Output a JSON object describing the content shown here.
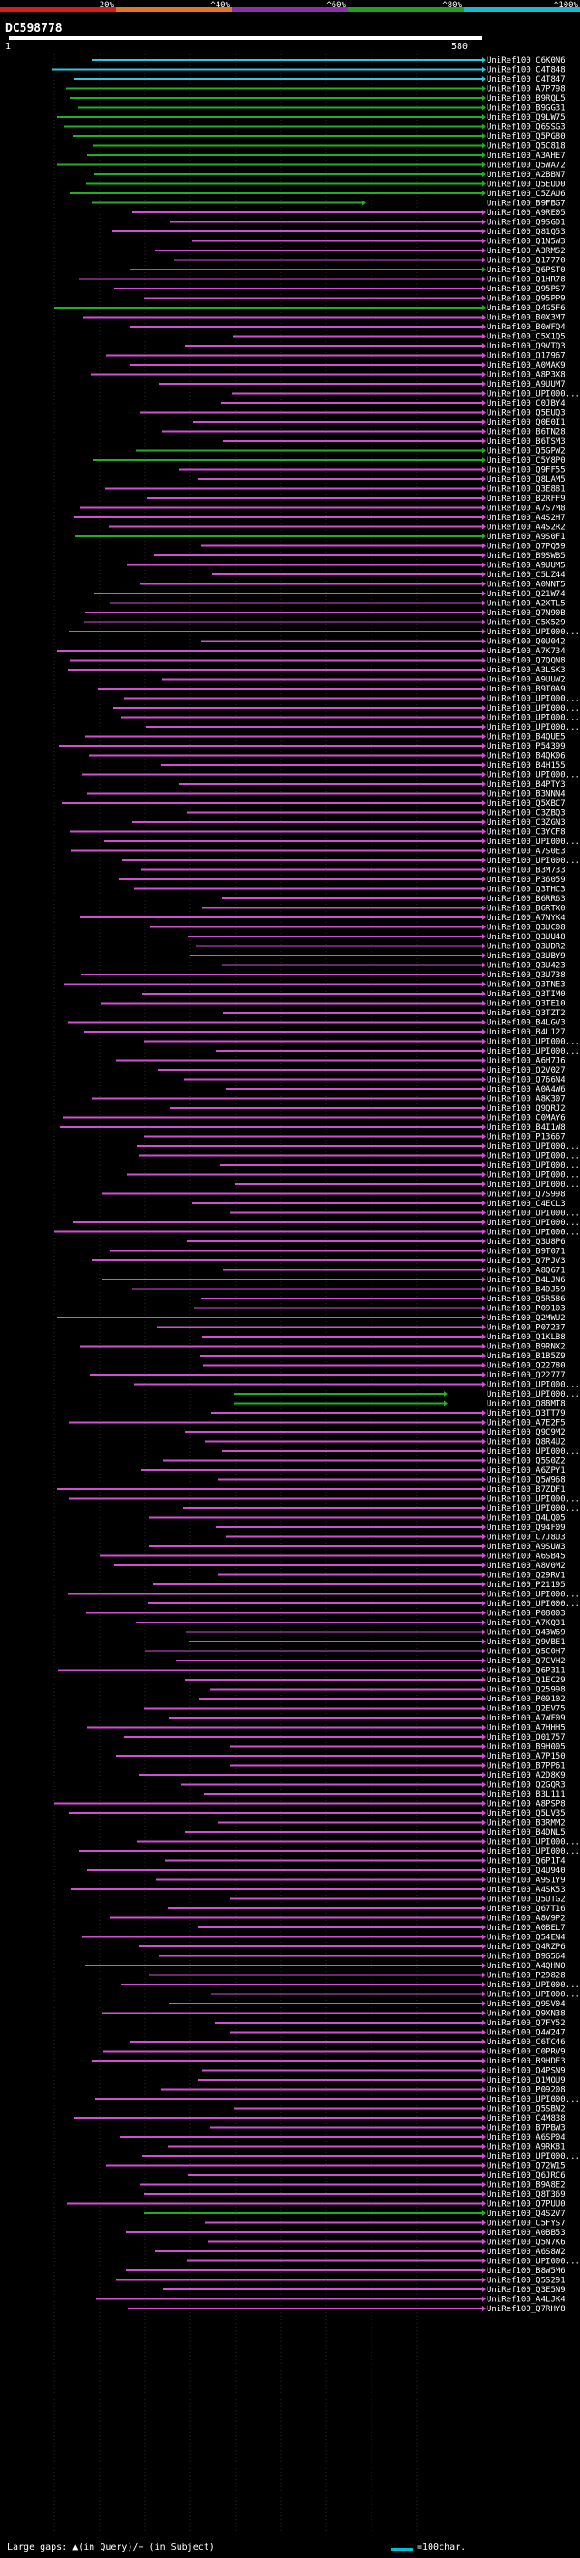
{
  "legend": {
    "ticks": [
      "20%",
      "^40%",
      "^60%",
      "^80%",
      "^100%"
    ],
    "colors": [
      "#d81b1b",
      "#e07820",
      "#8e2fae",
      "#20a020",
      "#1ab8d0"
    ]
  },
  "query": {
    "title": "DC598778",
    "start_label": "1",
    "end_label": "580"
  },
  "colors": {
    "magenta": "#d24fd2",
    "green": "#22b022",
    "cyan": "#2ec8e0",
    "gridline": "#555555"
  },
  "hits": [
    "UniRef100_C6K0N6",
    "UniRef100_C4T848",
    "UniRef100_C4T847",
    "UniRef100_A7P798",
    "UniRef100_B9RQL5",
    "UniRef100_B9GG31",
    "UniRef100_Q9LW75",
    "UniRef100_Q6SSG3",
    "UniRef100_Q5PG80",
    "UniRef100_Q5C818",
    "UniRef100_A3AHE7",
    "UniRef100_Q5WA72",
    "UniRef100_A2BBN7",
    "UniRef100_Q5EUD0",
    "UniRef100_C5ZAU6",
    "UniRef100_B9FBG7",
    "UniRef100_A9RE05",
    "UniRef100_Q9SGD1",
    "UniRef100_Q81Q53",
    "UniRef100_Q1N5W3",
    "UniRef100_A3RMS2",
    "UniRef100_Q17770",
    "UniRef100_Q6PST0",
    "UniRef100_Q1HR78",
    "UniRef100_Q95PS7",
    "UniRef100_Q95PP9",
    "UniRef100_Q4G5F6",
    "UniRef100_B0X3M7",
    "UniRef100_B0WFQ4",
    "UniRef100_C5X1Q5",
    "UniRef100_Q9VTQ3",
    "UniRef100_Q17967",
    "UniRef100_A0MAK9",
    "UniRef100_A8P3X8",
    "UniRef100_A9UUM7",
    "UniRef100_UPI000...",
    "UniRef100_C0JBY4",
    "UniRef100_Q5EUQ3",
    "UniRef100_Q0E0I1",
    "UniRef100_B6TN28",
    "UniRef100_B6TSM3",
    "UniRef100_Q5GPW2",
    "UniRef100_C5Y8P0",
    "UniRef100_Q9FF55",
    "UniRef100_Q8LAM5",
    "UniRef100_Q3E881",
    "UniRef100_B2RFF9",
    "UniRef100_A7S7M8",
    "UniRef100_A4S2H7",
    "UniRef100_A4S2R2",
    "UniRef100_A9S0F1",
    "UniRef100_Q7PQ59",
    "UniRef100_B9SWB5",
    "UniRef100_A9UUM5",
    "UniRef100_C5LZ44",
    "UniRef100_A0NNT5",
    "UniRef100_Q21W74",
    "UniRef100_A2XTL5",
    "UniRef100_Q7N90B",
    "UniRef100_C5X529",
    "UniRef100_UPI000...",
    "UniRef100_Q0U042",
    "UniRef100_A7K734",
    "UniRef100_Q7QQN8",
    "UniRef100_A3LSK3",
    "UniRef100_A9UUW2",
    "UniRef100_B9T0A9",
    "UniRef100_UPI000...",
    "UniRef100_UPI000...",
    "UniRef100_UPI000...",
    "UniRef100_UPI000...",
    "UniRef100_B4QUE5",
    "UniRef100_P54399",
    "UniRef100_B4QK06",
    "UniRef100_B4H155",
    "UniRef100_UPI000...",
    "UniRef100_B4PTY3",
    "UniRef100_B3NNN4",
    "UniRef100_Q5XBC7",
    "UniRef100_C3ZBQ3",
    "UniRef100_C3ZGN3",
    "UniRef100_C3YCF8",
    "UniRef100_UPI000...",
    "UniRef100_A7S0E3",
    "UniRef100_UPI000...",
    "UniRef100_B3M733",
    "UniRef100_P36059",
    "UniRef100_Q3THC3",
    "UniRef100_B6RR63",
    "UniRef100_B6RTX0",
    "UniRef100_A7NYK4",
    "UniRef100_Q3UC08",
    "UniRef100_Q3UU48",
    "UniRef100_Q3UDR2",
    "UniRef100_Q3UBY9",
    "UniRef100_Q3U423",
    "UniRef100_Q3U738",
    "UniRef100_Q3TNE3",
    "UniRef100_Q3TIM0",
    "UniRef100_Q3TE10",
    "UniRef100_Q3TZT2",
    "UniRef100_B4LGV3",
    "UniRef100_B4L127",
    "UniRef100_UPI000...",
    "UniRef100_UPI000...",
    "UniRef100_A6H7J6",
    "UniRef100_Q2V027",
    "UniRef100_Q766N4",
    "UniRef100_A0A4W6",
    "UniRef100_A8K307",
    "UniRef100_Q9QRJ2",
    "UniRef100_C0MAY6",
    "UniRef100_B4I1W8",
    "UniRef100_P13667",
    "UniRef100_UPI000...",
    "UniRef100_UPI000...",
    "UniRef100_UPI000...",
    "UniRef100_UPI000...",
    "UniRef100_UPI000...",
    "UniRef100_Q7S998",
    "UniRef100_C4ECL3",
    "UniRef100_UPI000...",
    "UniRef100_UPI000...",
    "UniRef100_UPI000...",
    "UniRef100_Q3U8P6",
    "UniRef100_B9T071",
    "UniRef100_Q7PJV3",
    "UniRef100_A8Q671",
    "UniRef100_B4LJN6",
    "UniRef100_B4DJ59",
    "UniRef100_Q5R586",
    "UniRef100_P09103",
    "UniRef100_Q2MWU2",
    "UniRef100_P07237",
    "UniRef100_Q1KLB8",
    "UniRef100_B9RNX2",
    "UniRef100_B1B5Z9",
    "UniRef100_Q22780",
    "UniRef100_Q22777",
    "UniRef100_UPI000...",
    "UniRef100_UPI000...",
    "UniRef100_Q8BMT8",
    "UniRef100_Q3TT79",
    "UniRef100_A7E2F5",
    "UniRef100_Q9C9M2",
    "UniRef100_Q8R4U2",
    "UniRef100_UPI000...",
    "UniRef100_Q5S0Z2",
    "UniRef100_A6ZPY1",
    "UniRef100_Q5W968",
    "UniRef100_B7ZDF1",
    "UniRef100_UPI000...",
    "UniRef100_UPI000...",
    "UniRef100_Q4LQ05",
    "UniRef100_Q94F09",
    "UniRef100_C7J8U3",
    "UniRef100_A9SUW3",
    "UniRef100_A6SB45",
    "UniRef100_A8V0M2",
    "UniRef100_Q29RV1",
    "UniRef100_P21195",
    "UniRef100_UPI000...",
    "UniRef100_UPI000...",
    "UniRef100_P08003",
    "UniRef100_A7KQ31",
    "UniRef100_Q43W69",
    "UniRef100_Q9VBE1",
    "UniRef100_Q5C0H7",
    "UniRef100_Q7CVH2",
    "UniRef100_Q6P311",
    "UniRef100_Q1EC29",
    "UniRef100_Q25998",
    "UniRef100_P09102",
    "UniRef100_Q2EV75",
    "UniRef100_A7WF09",
    "UniRef100_A7HHH5",
    "UniRef100_Q01757",
    "UniRef100_B9H005",
    "UniRef100_A7P150",
    "UniRef100_B7PP61",
    "UniRef100_A2D8K9",
    "UniRef100_Q2GQR3",
    "UniRef100_B3L111",
    "UniRef100_A8PSP8",
    "UniRef100_Q5LV35",
    "UniRef100_B3RMM2",
    "UniRef100_B4DNL5",
    "UniRef100_UPI000...",
    "UniRef100_UPI000...",
    "UniRef100_Q6P1T4",
    "UniRef100_Q4U940",
    "UniRef100_A9S1Y9",
    "UniRef100_A4SK53",
    "UniRef100_Q5UTG2",
    "UniRef100_Q67T16",
    "UniRef100_A8V9P2",
    "UniRef100_A0BEL7",
    "UniRef100_Q54EN4",
    "UniRef100_Q4RZP6",
    "UniRef100_B9G564",
    "UniRef100_A4QHN0",
    "UniRef100_P29828",
    "UniRef100_UPI000...",
    "UniRef100_UPI000...",
    "UniRef100_Q9SV04",
    "UniRef100_Q9XN38",
    "UniRef100_Q7FY52",
    "UniRef100_Q4W247",
    "UniRef100_C6TC46",
    "UniRef100_C0PRV9",
    "UniRef100_B9HDE3",
    "UniRef100_Q4PSN9",
    "UniRef100_Q1MQU9",
    "UniRef100_P09208",
    "UniRef100_UPI000...",
    "UniRef100_Q5SBN2",
    "UniRef100_C4M838",
    "UniRef100_B7PBW3",
    "UniRef100_A6SP04",
    "UniRef100_A9RK81",
    "UniRef100_UPI000...",
    "UniRef100_Q72W15",
    "UniRef100_Q6JRC6",
    "UniRef100_B9A8E2",
    "UniRef100_Q8T369",
    "UniRef100_Q7PUU0",
    "UniRef100_Q4S2V7",
    "UniRef100_C5FYS7",
    "UniRef100_A0BB53",
    "UniRef100_Q5N7K6",
    "UniRef100_A6S8W2",
    "UniRef100_UPI000...",
    "UniRef100_B8W5M6",
    "UniRef100_Q5S291",
    "UniRef100_Q3E5N9",
    "UniRef100_A4LJK4",
    "UniRef100_Q7RHY8"
  ],
  "footer": {
    "gaps_label": "Large gaps: ▲(in Query)/− (in Subject)",
    "scale_label": "=100char."
  }
}
